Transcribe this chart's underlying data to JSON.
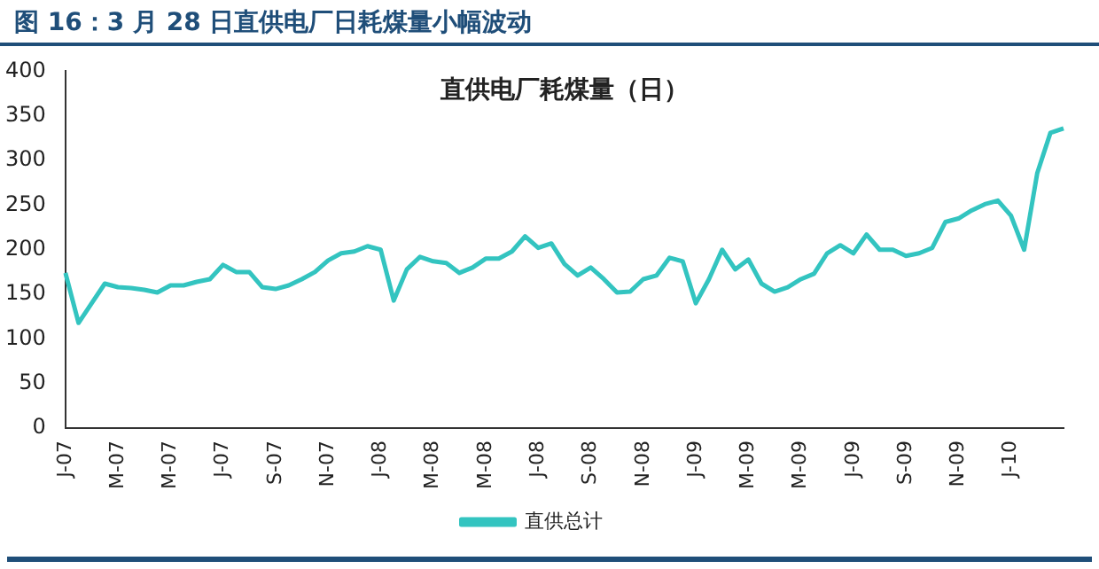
{
  "chart_data": {
    "type": "line",
    "title": "图 16：3 月 28 日直供电厂日耗煤量小幅波动",
    "subtitle": "直供电厂耗煤量（日）",
    "categories": [
      "J-07",
      null,
      null,
      null,
      "M-07",
      null,
      null,
      null,
      "M-07",
      null,
      null,
      null,
      "J-07",
      null,
      null,
      null,
      "S-07",
      null,
      null,
      null,
      "N-07",
      null,
      null,
      null,
      "J-08",
      null,
      null,
      null,
      "M-08",
      null,
      null,
      null,
      "M-08",
      null,
      null,
      null,
      "J-08",
      null,
      null,
      null,
      "S-08",
      null,
      null,
      null,
      "N-08",
      null,
      null,
      null,
      "J-09",
      null,
      null,
      null,
      "M-09",
      null,
      null,
      null,
      "M-09",
      null,
      null,
      null,
      "J-09",
      null,
      null,
      null,
      "S-09",
      null,
      null,
      null,
      "N-09",
      null,
      null,
      null,
      "J-10",
      null,
      null,
      null,
      null
    ],
    "series": [
      {
        "name": "直供总计",
        "color": "#33c4c0",
        "values": [
          174,
          118,
          140,
          162,
          158,
          157,
          155,
          152,
          160,
          160,
          164,
          167,
          183,
          175,
          175,
          158,
          156,
          160,
          167,
          175,
          188,
          196,
          198,
          204,
          200,
          143,
          178,
          192,
          187,
          185,
          174,
          180,
          190,
          190,
          198,
          215,
          202,
          207,
          184,
          171,
          180,
          167,
          152,
          153,
          167,
          171,
          191,
          187,
          140,
          167,
          200,
          178,
          189,
          162,
          153,
          158,
          167,
          173,
          196,
          205,
          196,
          217,
          200,
          200,
          193,
          196,
          202,
          231,
          235,
          244,
          251,
          255,
          238,
          200,
          286,
          331,
          336
        ]
      }
    ],
    "ylim": [
      0,
      400
    ],
    "yticks": [
      0,
      50,
      100,
      150,
      200,
      250,
      300,
      350,
      400
    ],
    "grid": false,
    "legend": "bottom",
    "marker": "none",
    "line_style": "solid"
  }
}
